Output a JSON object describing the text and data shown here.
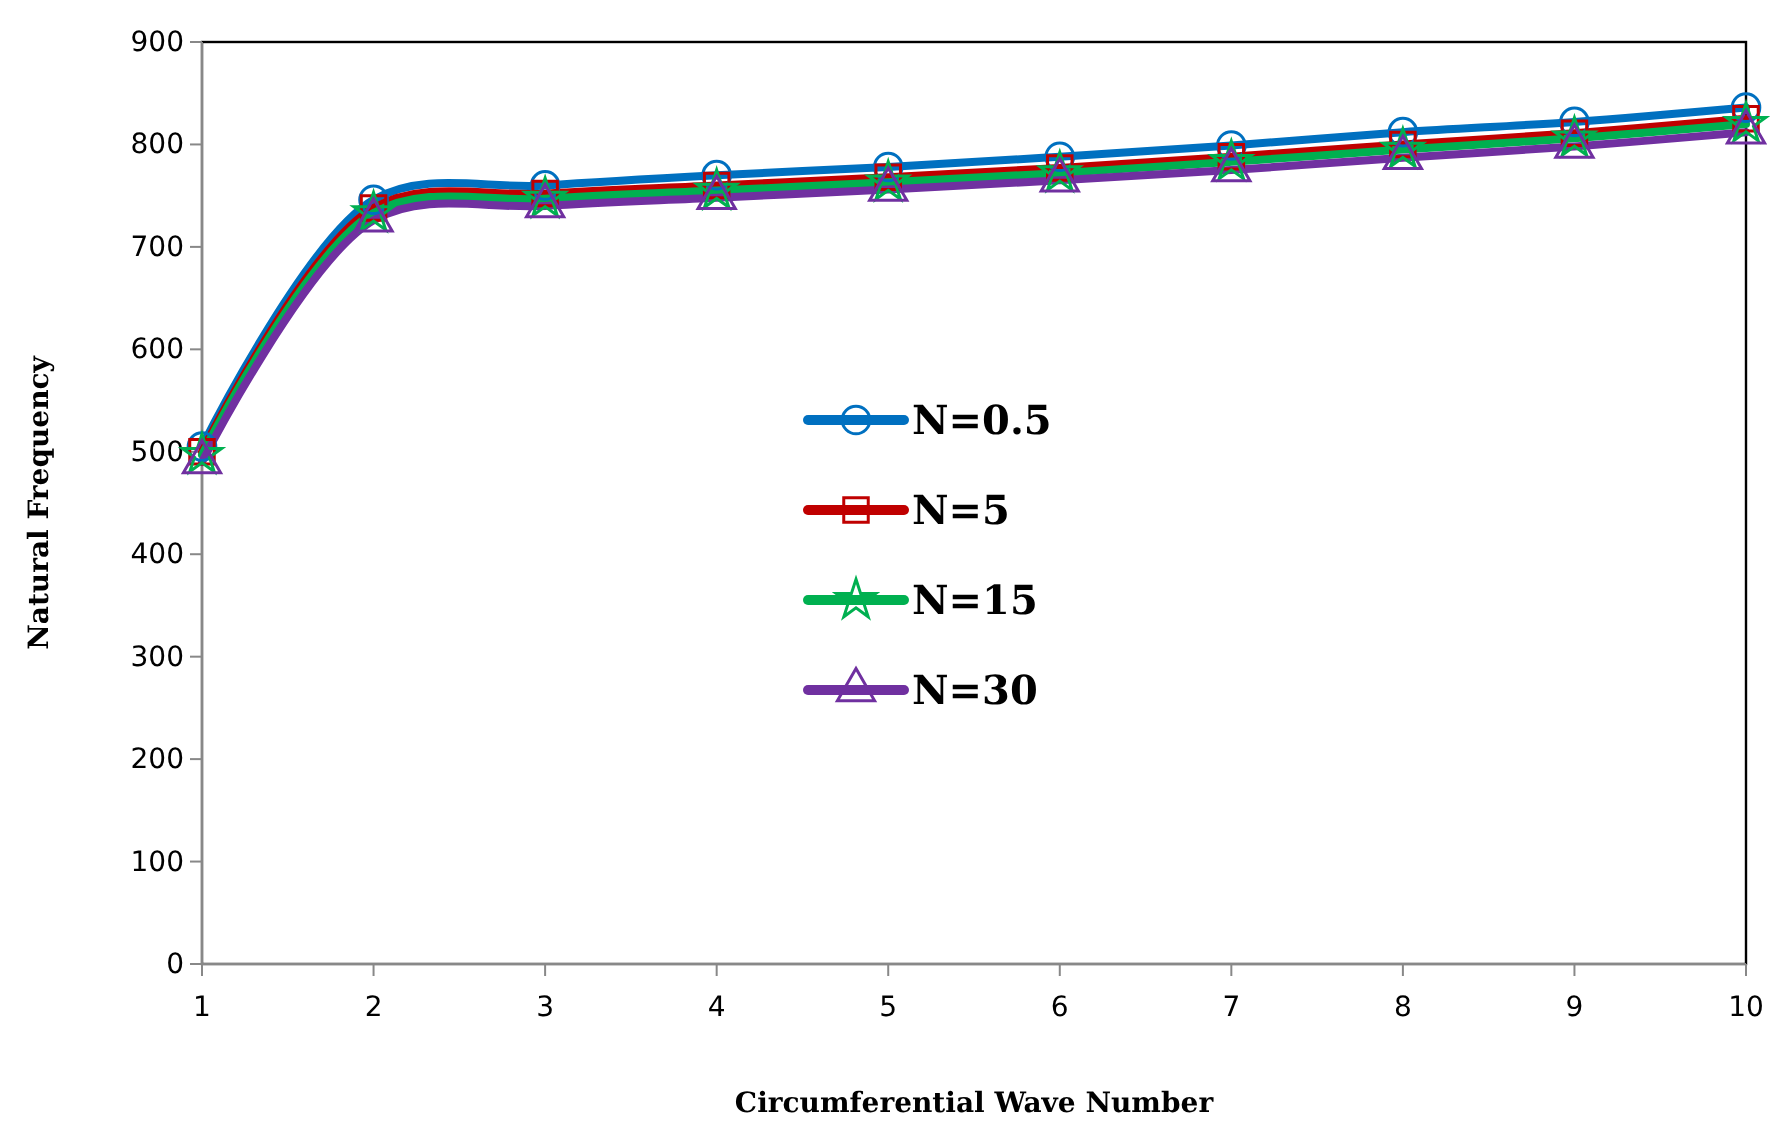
{
  "chart_data": {
    "type": "line",
    "xlabel": "Circumferential Wave Number",
    "ylabel": "Natural Frequency",
    "x": [
      1,
      2,
      3,
      4,
      5,
      6,
      7,
      8,
      9,
      10
    ],
    "xlim": [
      1,
      10
    ],
    "xticks": [
      1,
      2,
      3,
      4,
      5,
      6,
      7,
      8,
      9,
      10
    ],
    "ylim": [
      0,
      900
    ],
    "yticks": [
      0,
      100,
      200,
      300,
      400,
      500,
      600,
      700,
      800,
      900
    ],
    "grid": false,
    "legend": "center",
    "series": [
      {
        "name": "N=0.5",
        "color": "#0070c0",
        "marker": "circle",
        "values": [
          505,
          746,
          760,
          770,
          778,
          788,
          799,
          812,
          822,
          836
        ]
      },
      {
        "name": "N=5",
        "color": "#c00000",
        "marker": "square",
        "values": [
          500,
          738,
          752,
          760,
          768,
          777,
          788,
          800,
          811,
          825
        ]
      },
      {
        "name": "N=15",
        "color": "#00b050",
        "marker": "star",
        "values": [
          497,
          733,
          747,
          755,
          763,
          772,
          783,
          795,
          806,
          820
        ]
      },
      {
        "name": "N=30",
        "color": "#7030a0",
        "marker": "triangle",
        "values": [
          490,
          726,
          740,
          748,
          756,
          765,
          775,
          787,
          798,
          812
        ]
      }
    ]
  }
}
